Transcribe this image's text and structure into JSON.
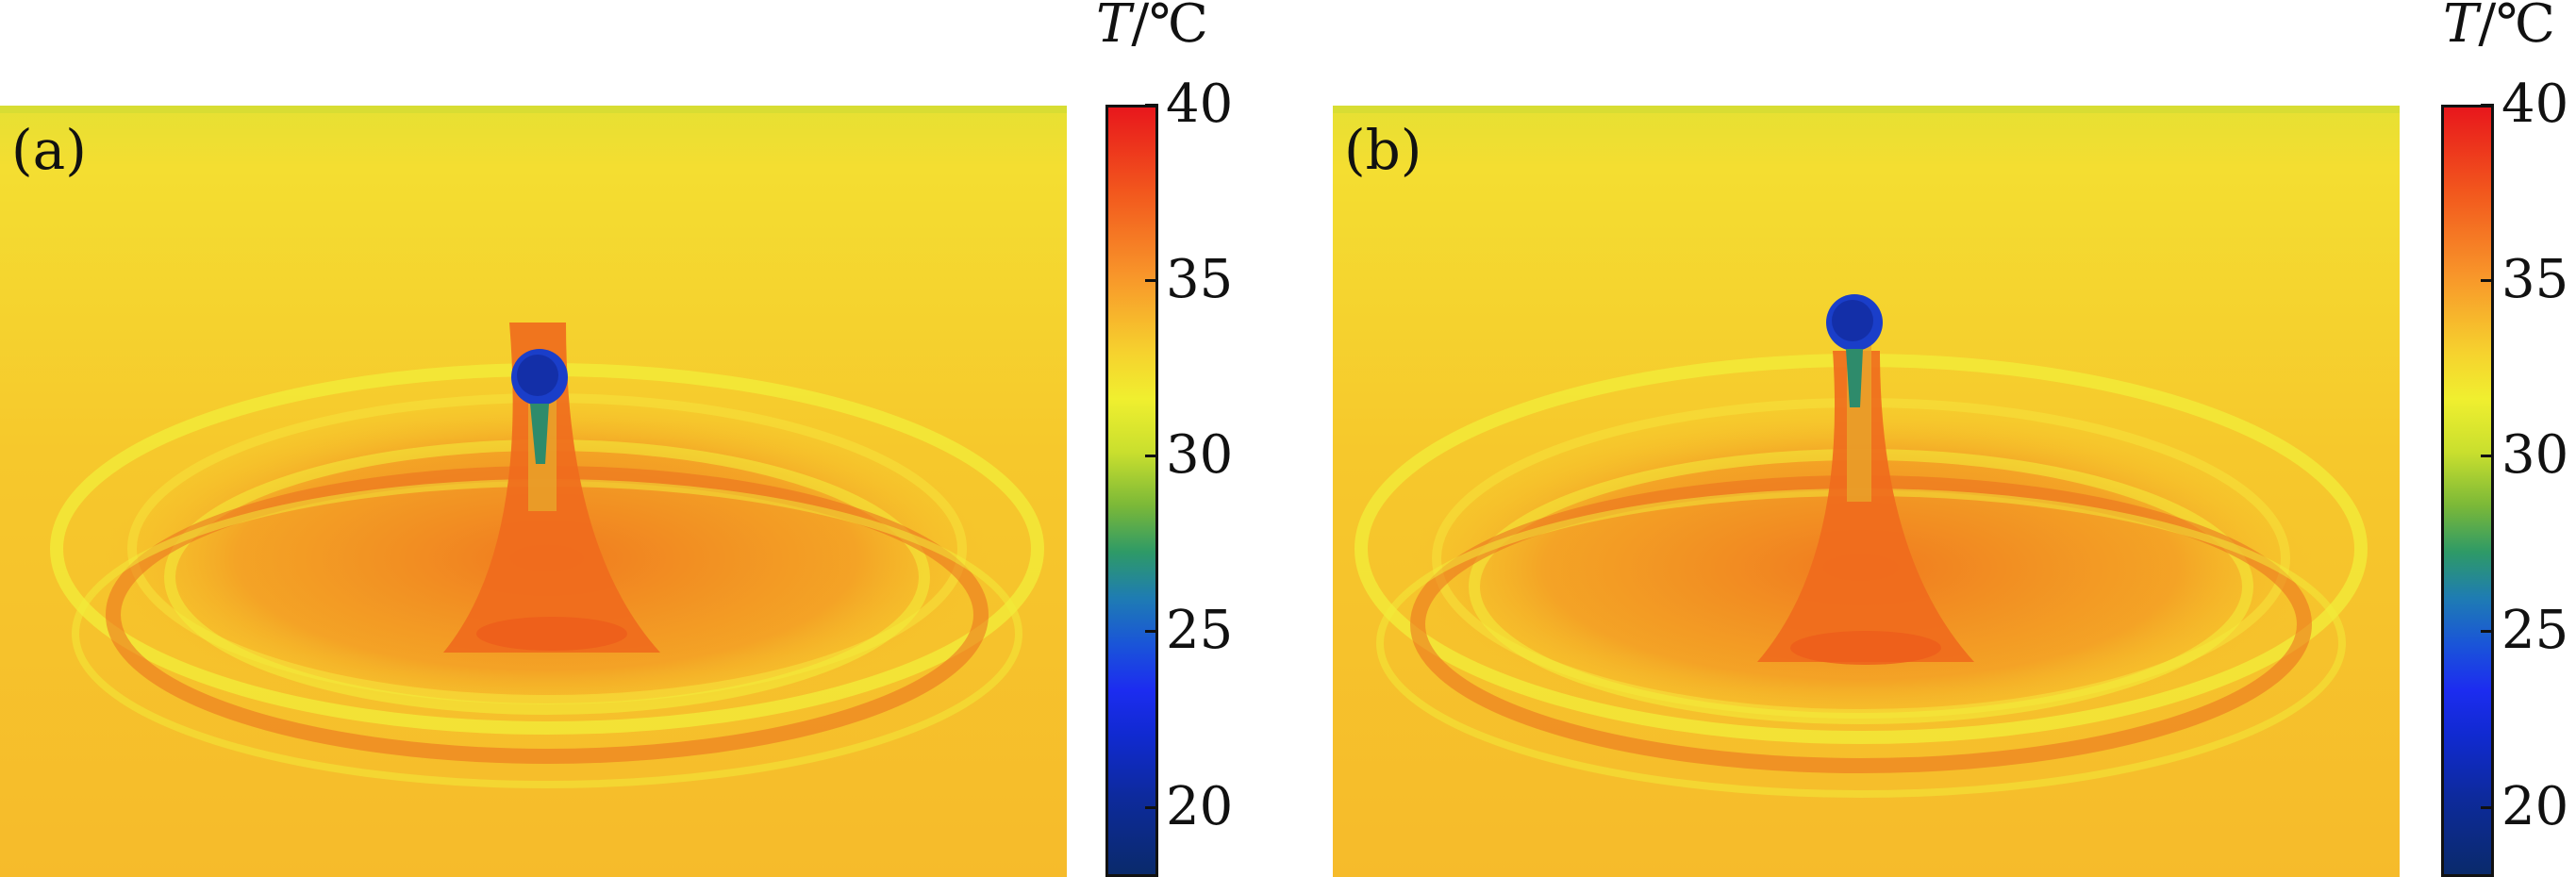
{
  "panels": [
    {
      "label": "(a)"
    },
    {
      "label": "(b)"
    }
  ],
  "colorbar": {
    "title_var": "T",
    "title_unit": "/℃",
    "ticks": [
      "40",
      "35",
      "30",
      "25",
      "20"
    ],
    "range": [
      18,
      40
    ]
  },
  "colors": {
    "hot": "#e8171c",
    "warm": "#f6c52a",
    "cold": "#0d2a9c"
  }
}
